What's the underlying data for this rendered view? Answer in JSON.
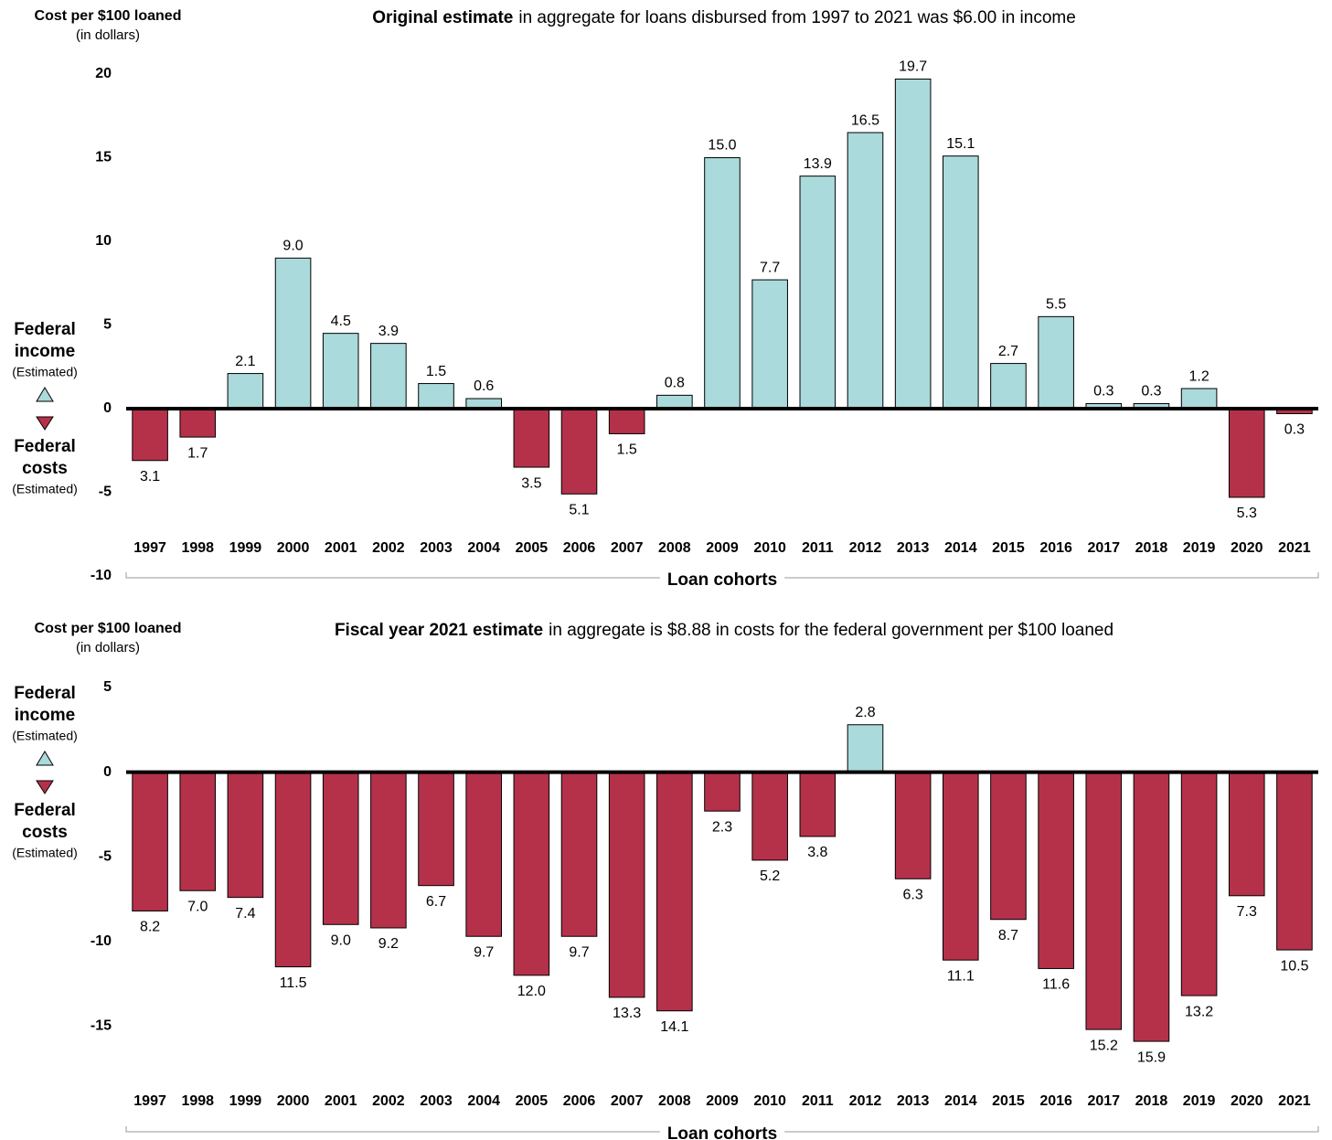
{
  "chart_data": [
    {
      "type": "bar",
      "title_bold": "Original estimate",
      "title": "in aggregate for loans disbursed from 1997 to 2021 was $6.00 in income",
      "y_label": "Cost per $100 loaned",
      "y_sublabel": "(in dollars)",
      "x_label": "Loan cohorts",
      "income_label": [
        "Federal",
        "income"
      ],
      "costs_label": [
        "Federal",
        "costs"
      ],
      "estimated_label": "(Estimated)",
      "categories": [
        "1997",
        "1998",
        "1999",
        "2000",
        "2001",
        "2002",
        "2003",
        "2004",
        "2005",
        "2006",
        "2007",
        "2008",
        "2009",
        "2010",
        "2011",
        "2012",
        "2013",
        "2014",
        "2015",
        "2016",
        "2017",
        "2018",
        "2019",
        "2020",
        "2021"
      ],
      "values": [
        -3.1,
        -1.7,
        2.1,
        9.0,
        4.5,
        3.9,
        1.5,
        0.6,
        -3.5,
        -5.1,
        -1.5,
        0.8,
        15.0,
        7.7,
        13.9,
        16.5,
        19.7,
        15.1,
        2.7,
        5.5,
        0.3,
        0.3,
        1.2,
        -5.3,
        -0.3
      ],
      "value_labels": [
        "3.1",
        "1.7",
        "2.1",
        "9.0",
        "4.5",
        "3.9",
        "1.5",
        "0.6",
        "3.5",
        "5.1",
        "1.5",
        "0.8",
        "15.0",
        "7.7",
        "13.9",
        "16.5",
        "19.7",
        "15.1",
        "2.7",
        "5.5",
        "0.3",
        "0.3",
        "1.2",
        "5.3",
        "0.3"
      ],
      "color": "#aadadb",
      "negative_color": "#b5314a",
      "ylim": [
        -10,
        20
      ],
      "yticks": [
        -10,
        -5,
        0,
        5,
        10,
        15,
        20
      ]
    },
    {
      "type": "bar",
      "title_bold": "Fiscal year 2021 estimate",
      "title": "in aggregate is $8.88 in costs for the federal government per $100 loaned",
      "y_label": "Cost per $100 loaned",
      "y_sublabel": "(in dollars)",
      "x_label": "Loan cohorts",
      "income_label": [
        "Federal",
        "income"
      ],
      "costs_label": [
        "Federal",
        "costs"
      ],
      "estimated_label": "(Estimated)",
      "categories": [
        "1997",
        "1998",
        "1999",
        "2000",
        "2001",
        "2002",
        "2003",
        "2004",
        "2005",
        "2006",
        "2007",
        "2008",
        "2009",
        "2010",
        "2011",
        "2012",
        "2013",
        "2014",
        "2015",
        "2016",
        "2017",
        "2018",
        "2019",
        "2020",
        "2021"
      ],
      "values": [
        -8.2,
        -7.0,
        -7.4,
        -11.5,
        -9.0,
        -9.2,
        -6.7,
        -9.7,
        -12.0,
        -9.7,
        -13.3,
        -14.1,
        -2.3,
        -5.2,
        -3.8,
        2.8,
        -6.3,
        -11.1,
        -8.7,
        -11.6,
        -15.2,
        -15.9,
        -13.2,
        -7.3,
        -10.5
      ],
      "value_labels": [
        "8.2",
        "7.0",
        "7.4",
        "11.5",
        "9.0",
        "9.2",
        "6.7",
        "9.7",
        "12.0",
        "9.7",
        "13.3",
        "14.1",
        "2.3",
        "5.2",
        "3.8",
        "2.8",
        "6.3",
        "11.1",
        "8.7",
        "11.6",
        "15.2",
        "15.9",
        "13.2",
        "7.3",
        "10.5"
      ],
      "color": "#aadadb",
      "negative_color": "#b5314a",
      "ylim": [
        -20,
        5
      ],
      "yticks": [
        -15,
        -10,
        -5,
        0,
        5
      ]
    }
  ]
}
